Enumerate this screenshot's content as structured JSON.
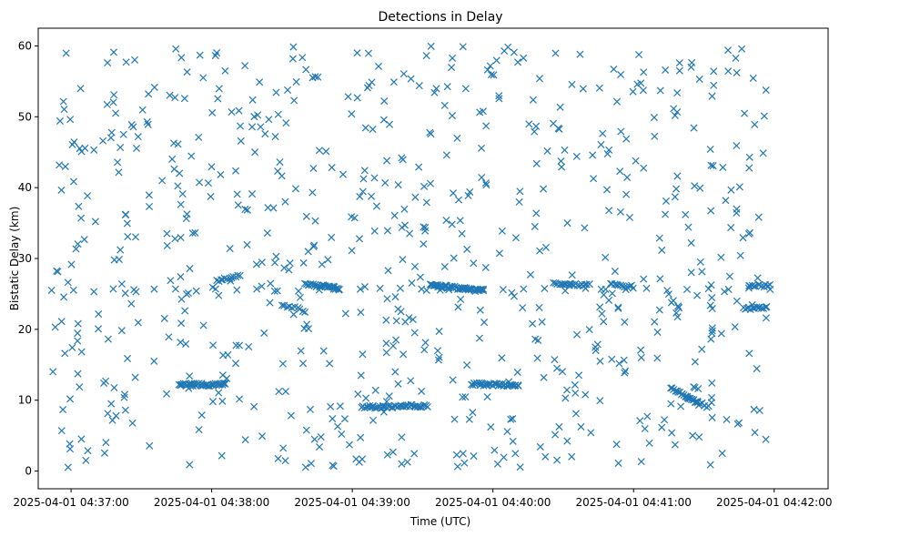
{
  "chart_data": {
    "type": "scatter",
    "title": "Detections in Delay",
    "xlabel": "Time (UTC)",
    "ylabel": "Bistatic Delay (km)",
    "marker": "x",
    "color": "#1f77b4",
    "grid": false,
    "x_unit": "seconds after 2025-04-01 04:36:00 UTC",
    "xlim": [
      46,
      383
    ],
    "ylim": [
      -2.5,
      62.5
    ],
    "xticks": [
      {
        "value": 60,
        "label": "2025-04-01 04:37:00"
      },
      {
        "value": 120,
        "label": "2025-04-01 04:38:00"
      },
      {
        "value": 180,
        "label": "2025-04-01 04:39:00"
      },
      {
        "value": 240,
        "label": "2025-04-01 04:40:00"
      },
      {
        "value": 300,
        "label": "2025-04-01 04:41:00"
      },
      {
        "value": 360,
        "label": "2025-04-01 04:42:00"
      }
    ],
    "yticks": [
      {
        "value": 0,
        "label": "0"
      },
      {
        "value": 10,
        "label": "10"
      },
      {
        "value": 20,
        "label": "20"
      },
      {
        "value": 30,
        "label": "30"
      },
      {
        "value": 40,
        "label": "40"
      },
      {
        "value": 50,
        "label": "50"
      },
      {
        "value": 60,
        "label": "60"
      }
    ],
    "time_range": [
      52,
      358
    ],
    "noise_detection_count": 720,
    "tracks": [
      {
        "t_start": 52,
        "t_end": 358,
        "delay_start": 25.5,
        "delay_end": 25.7,
        "count": 36
      },
      {
        "t_start": 106,
        "t_end": 126,
        "delay_start": 12.2,
        "delay_end": 12.2,
        "count": 40
      },
      {
        "t_start": 122,
        "t_end": 132,
        "delay_start": 26.9,
        "delay_end": 27.7,
        "count": 12
      },
      {
        "t_start": 160,
        "t_end": 174,
        "delay_start": 26.4,
        "delay_end": 25.8,
        "count": 30
      },
      {
        "t_start": 150,
        "t_end": 160,
        "delay_start": 23.5,
        "delay_end": 22.6,
        "count": 10
      },
      {
        "t_start": 184,
        "t_end": 212,
        "delay_start": 9.0,
        "delay_end": 9.2,
        "count": 45
      },
      {
        "t_start": 213,
        "t_end": 236,
        "delay_start": 26.3,
        "delay_end": 25.4,
        "count": 50
      },
      {
        "t_start": 231,
        "t_end": 251,
        "delay_start": 12.3,
        "delay_end": 12.1,
        "count": 35
      },
      {
        "t_start": 266,
        "t_end": 281,
        "delay_start": 26.5,
        "delay_end": 26.2,
        "count": 20
      },
      {
        "t_start": 290,
        "t_end": 300,
        "delay_start": 26.4,
        "delay_end": 26.0,
        "count": 12
      },
      {
        "t_start": 316,
        "t_end": 328,
        "delay_start": 11.8,
        "delay_end": 9.5,
        "count": 20
      },
      {
        "t_start": 322,
        "t_end": 332,
        "delay_start": 10.5,
        "delay_end": 9.0,
        "count": 12
      },
      {
        "t_start": 347,
        "t_end": 357,
        "delay_start": 23.0,
        "delay_end": 23.0,
        "count": 14
      },
      {
        "t_start": 349,
        "t_end": 358,
        "delay_start": 26.1,
        "delay_end": 26.2,
        "count": 12
      }
    ]
  }
}
